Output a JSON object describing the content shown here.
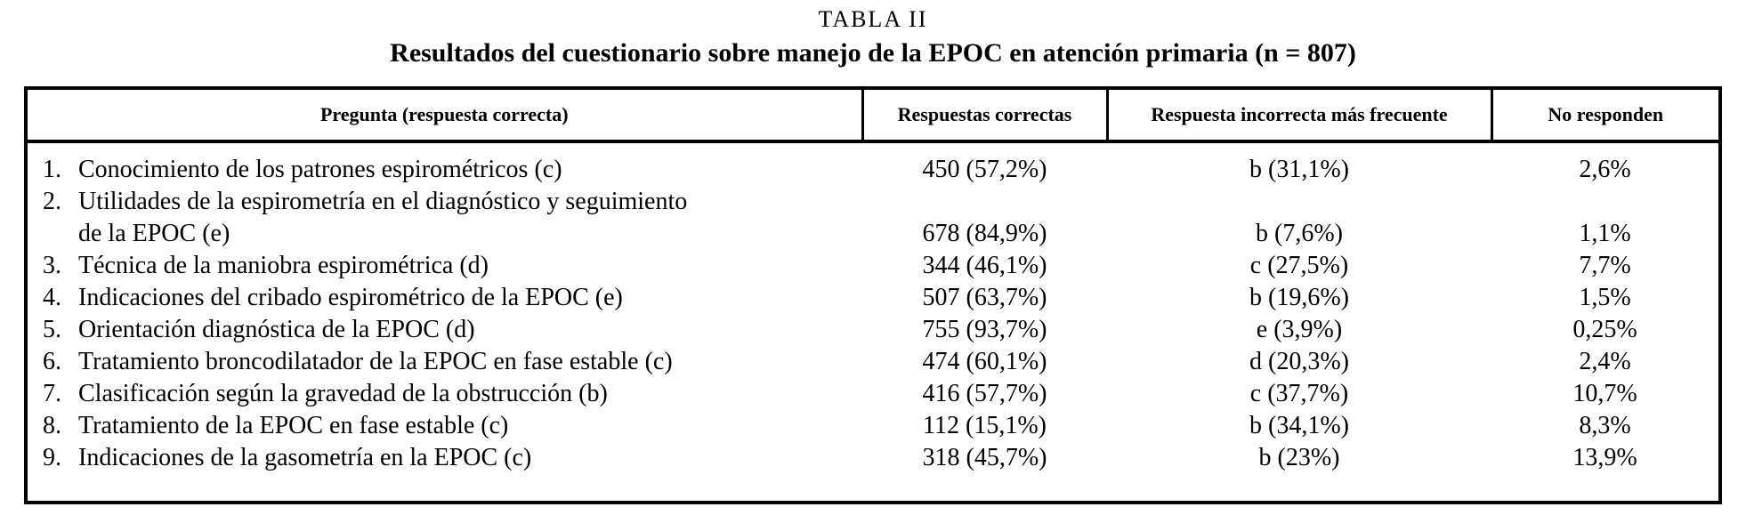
{
  "title": "TABLA II",
  "subtitle": "Resultados del cuestionario sobre manejo de la EPOC en atención primaria (n = 807)",
  "table": {
    "headers": [
      "Pregunta (respuesta correcta)",
      "Respuestas correctas",
      "Respuesta incorrecta más frecuente",
      "No responden"
    ],
    "rows": [
      {
        "num": "1.",
        "question": "Conocimiento de los patrones espirométricos (c)",
        "question_line2": null,
        "correct": "450 (57,2%)",
        "incorrect": "b (31,1%)",
        "no_answer": "2,6%"
      },
      {
        "num": "2.",
        "question": "Utilidades de la espirometría en el diagnóstico y seguimiento",
        "question_line2": "de la EPOC (e)",
        "correct": "678 (84,9%)",
        "incorrect": "b (7,6%)",
        "no_answer": "1,1%"
      },
      {
        "num": "3.",
        "question": "Técnica de la maniobra espirométrica (d)",
        "question_line2": null,
        "correct": "344 (46,1%)",
        "incorrect": "c (27,5%)",
        "no_answer": "7,7%"
      },
      {
        "num": "4.",
        "question": "Indicaciones del cribado espirométrico de la EPOC (e)",
        "question_line2": null,
        "correct": "507 (63,7%)",
        "incorrect": "b (19,6%)",
        "no_answer": "1,5%"
      },
      {
        "num": "5.",
        "question": "Orientación diagnóstica de la EPOC (d)",
        "question_line2": null,
        "correct": "755 (93,7%)",
        "incorrect": "e (3,9%)",
        "no_answer": "0,25%"
      },
      {
        "num": "6.",
        "question": "Tratamiento broncodilatador de la EPOC en fase estable (c)",
        "question_line2": null,
        "correct": "474 (60,1%)",
        "incorrect": "d (20,3%)",
        "no_answer": "2,4%"
      },
      {
        "num": "7.",
        "question": "Clasificación según la gravedad de la obstrucción (b)",
        "question_line2": null,
        "correct": "416 (57,7%)",
        "incorrect": "c (37,7%)",
        "no_answer": "10,7%"
      },
      {
        "num": "8.",
        "question": "Tratamiento de la EPOC en fase estable (c)",
        "question_line2": null,
        "correct": "112 (15,1%)",
        "incorrect": "b (34,1%)",
        "no_answer": "8,3%"
      },
      {
        "num": "9.",
        "question": "Indicaciones de la gasometría en la EPOC (c)",
        "question_line2": null,
        "correct": "318 (45,7%)",
        "incorrect": "b (23%)",
        "no_answer": "13,9%"
      }
    ]
  }
}
